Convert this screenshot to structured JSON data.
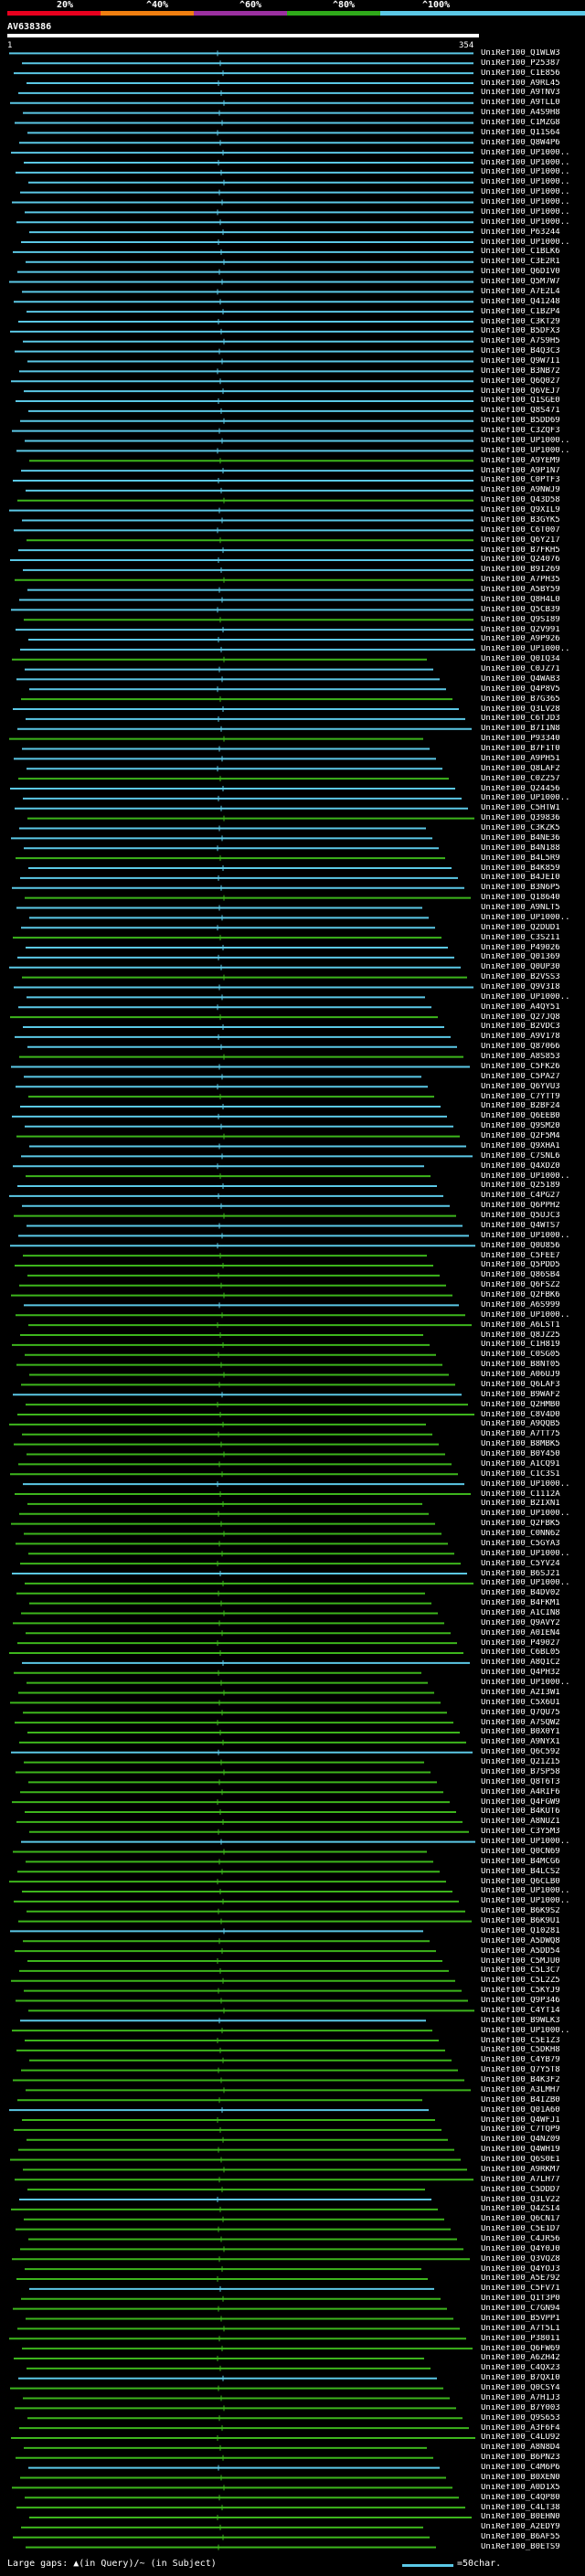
{
  "header": {
    "percent_labels": [
      "20%",
      "^40%",
      "^60%",
      "^80%",
      "^100%"
    ],
    "band_colors": [
      "#e8001e",
      "#f07f10",
      "#9b30a0",
      "#2faa1a",
      "#5bc8e6"
    ]
  },
  "query": {
    "name": "AV638386",
    "start_label": "1",
    "end_label": "354"
  },
  "colors": {
    "blue": "#5bc8e6",
    "green": "#3db51c",
    "magenta": "#c430a0",
    "line_dark": "#1a1a1a"
  },
  "hits": [
    "UniRef100_Q1WLW3",
    "UniRef100_P25387",
    "UniRef100_C1E856",
    "UniRef100_A9RL45",
    "UniRef100_A9TNV3",
    "UniRef100_A9TLL0",
    "UniRef100_A4S9H8",
    "UniRef100_C1MZG8",
    "UniRef100_Q11S64",
    "UniRef100_Q8W4P6",
    "UniRef100_UP1000..",
    "UniRef100_UP1000..",
    "UniRef100_UP1000..",
    "UniRef100_UP1000..",
    "UniRef100_UP1000..",
    "UniRef100_UP1000..",
    "UniRef100_UP1000..",
    "UniRef100_UP1000..",
    "UniRef100_P63244",
    "UniRef100_UP1000..",
    "UniRef100_C1BLK6",
    "UniRef100_C3E2R1",
    "UniRef100_Q6DIV0",
    "UniRef100_Q5M7W7",
    "UniRef100_A7E2L4",
    "UniRef100_Q41248",
    "UniRef100_C1BZP4",
    "UniRef100_C3KT29",
    "UniRef100_B5DFX3",
    "UniRef100_A7S9H5",
    "UniRef100_B4Q3C3",
    "UniRef100_Q9W7I1",
    "UniRef100_B3NB72",
    "UniRef100_Q6Q027",
    "UniRef100_Q6VEJ7",
    "UniRef100_Q1SGE0",
    "UniRef100_Q8S471",
    "UniRef100_B5DD69",
    "UniRef100_C3ZQF3",
    "UniRef100_UP1000..",
    "UniRef100_UP1000..",
    "UniRef100_A9YEM9",
    "UniRef100_A9P1N7",
    "UniRef100_C0PTF3",
    "UniRef100_A9NWJ9",
    "UniRef100_Q43D58",
    "UniRef100_Q9XIL9",
    "UniRef100_B3GYK5",
    "UniRef100_C6T007",
    "UniRef100_Q6Y217",
    "UniRef100_B7FKH5",
    "UniRef100_Q24076",
    "UniRef100_B9I269",
    "UniRef100_A7PH35",
    "UniRef100_A5BY59",
    "UniRef100_Q8H4L0",
    "UniRef100_Q5CB39",
    "UniRef100_Q9SI89",
    "UniRef100_Q2V991",
    "UniRef100_A9P926",
    "UniRef100_UP1000..",
    "UniRef100_Q0IQ34",
    "UniRef100_C0JZ71",
    "UniRef100_Q4WAB3",
    "UniRef100_Q4P8V5",
    "UniRef100_B7G365",
    "UniRef100_Q3LV28",
    "UniRef100_C6TJD3",
    "UniRef100_B7I1N8",
    "UniRef100_P93340",
    "UniRef100_B7F1T0",
    "UniRef100_A9PH51",
    "UniRef100_Q8LAF2",
    "UniRef100_C0Z257",
    "UniRef100_Q24456",
    "UniRef100_UP1000..",
    "UniRef100_C5HTW1",
    "UniRef100_Q39836",
    "UniRef100_C3KZK5",
    "UniRef100_B4NE36",
    "UniRef100_B4N188",
    "UniRef100_B4L5R9",
    "UniRef100_B4K859",
    "UniRef100_B4JEI0",
    "UniRef100_B3N6P5",
    "UniRef100_Q18640",
    "UniRef100_A9NLT5",
    "UniRef100_UP1000..",
    "UniRef100_Q2DUD1",
    "UniRef100_C3S211",
    "UniRef100_P49026",
    "UniRef100_Q01369",
    "UniRef100_Q0UP30",
    "UniRef100_B2VSS3",
    "UniRef100_Q9V3I8",
    "UniRef100_UP1000..",
    "UniRef100_A4QY51",
    "UniRef100_Q27JQ8",
    "UniRef100_B2VDC3",
    "UniRef100_A9V178",
    "UniRef100_Q87066",
    "UniRef100_A8S853",
    "UniRef100_C5FK26",
    "UniRef100_C5PA27",
    "UniRef100_Q6YVU3",
    "UniRef100_C7YTT9",
    "UniRef100_B2BF24",
    "UniRef100_Q6EEB0",
    "UniRef100_Q9SM20",
    "UniRef100_Q2F5M4",
    "UniRef100_Q9XHA1",
    "UniRef100_C7SNL6",
    "UniRef100_Q4XDZ0",
    "UniRef100_UP1000..",
    "UniRef100_Q25189",
    "UniRef100_C4PG27",
    "UniRef100_Q6PPH2",
    "UniRef100_Q5UJC3",
    "UniRef100_Q4WTS7",
    "UniRef100_UP1000..",
    "UniRef100_Q0U856",
    "UniRef100_C5FEE7",
    "UniRef100_Q5PDD5",
    "UniRef100_Q86SB4",
    "UniRef100_Q6FSZ2",
    "UniRef100_Q2FBK6",
    "UniRef100_A6S999",
    "UniRef100_UP1000..",
    "UniRef100_A6LST1",
    "UniRef100_Q8JZ25",
    "UniRef100_C1H819",
    "UniRef100_C0SG05",
    "UniRef100_B8NT05",
    "UniRef100_A06UJ9",
    "UniRef100_Q6LAF3",
    "UniRef100_B9WAF2",
    "UniRef100_Q2HMB0",
    "UniRef100_C8V4D0",
    "UniRef100_A9QQB5",
    "UniRef100_A7TT75",
    "UniRef100_B8MBK5",
    "UniRef100_B0Y450",
    "UniRef100_A1CQ91",
    "UniRef100_C1C3S1",
    "UniRef100_UP1000..",
    "UniRef100_C1112A",
    "UniRef100_B2IXN1",
    "UniRef100_UP1000..",
    "UniRef100_Q2FBK5",
    "UniRef100_C0NN62",
    "UniRef100_C5GYA3",
    "UniRef100_UP1000..",
    "UniRef100_C5YV24",
    "UniRef100_B6SJ21",
    "UniRef100_UP1000..",
    "UniRef100_B4DV02",
    "UniRef100_B4FKM1",
    "UniRef100_A1CIN8",
    "UniRef100_Q9AVY2",
    "UniRef100_A0IEN4",
    "UniRef100_P49027",
    "UniRef100_C6BL05",
    "UniRef100_A8Q1C2",
    "UniRef100_Q4PH32",
    "UniRef100_UP1000..",
    "UniRef100_A2I3W1",
    "UniRef100_C5X6U1",
    "UniRef100_Q7QU75",
    "UniRef100_A7SQW2",
    "UniRef100_B0X0Y1",
    "UniRef100_A9NYX1",
    "UniRef100_Q6C592",
    "UniRef100_Q21Z15",
    "UniRef100_B7SP58",
    "UniRef100_Q8T6T3",
    "UniRef100_A4RIF6",
    "UniRef100_Q4FGW9",
    "UniRef100_B4KUT6",
    "UniRef100_A8NUZ1",
    "UniRef100_C3Y5M3",
    "UniRef100_UP1000..",
    "UniRef100_Q0CN69",
    "UniRef100_B4MCG6",
    "UniRef100_B4LCS2",
    "UniRef100_Q6CLB0",
    "UniRef100_UP1000..",
    "UniRef100_UP1000..",
    "UniRef100_B6K9S2",
    "UniRef100_B6K9U1",
    "UniRef100_Q10281",
    "UniRef100_A5DWQ8",
    "UniRef100_A5DD54",
    "UniRef100_C5MJU0",
    "UniRef100_C5L3C7",
    "UniRef100_C5L2Z5",
    "UniRef100_C5KYJ9",
    "UniRef100_Q9P346",
    "UniRef100_C4YT14",
    "UniRef100_B9WLK3",
    "UniRef100_UP1000..",
    "UniRef100_C5E1Z3",
    "UniRef100_C5DKH8",
    "UniRef100_C4YB79",
    "UniRef100_Q7Y5T8",
    "UniRef100_B4K3F2",
    "UniRef100_A3LMH7",
    "UniRef100_B4IZB0",
    "UniRef100_Q01A60",
    "UniRef100_Q4WFJ1",
    "UniRef100_C7TQP9",
    "UniRef100_Q4NZ09",
    "UniRef100_Q4WH19",
    "UniRef100_Q6S0E1",
    "UniRef100_A9RKM7",
    "UniRef100_A7LH77",
    "UniRef100_C5DDD7",
    "UniRef100_Q3LV22",
    "UniRef100_Q4ZSI4",
    "UniRef100_Q6CN17",
    "UniRef100_C5E1D7",
    "UniRef100_C4JR56",
    "UniRef100_Q4Y0J0",
    "UniRef100_Q3VQZ8",
    "UniRef100_Q4YOJ3",
    "UniRef100_A5E792",
    "UniRef100_C5FV71",
    "UniRef100_Q1T3P0",
    "UniRef100_C7GN94",
    "UniRef100_B5VPP1",
    "UniRef100_A7T5L1",
    "UniRef100_P38011",
    "UniRef100_Q6FW69",
    "UniRef100_A6ZH42",
    "UniRef100_C4QX23",
    "UniRef100_B7QXI0",
    "UniRef100_Q0CSY4",
    "UniRef100_A7H1J3",
    "UniRef100_B7Y003",
    "UniRef100_Q9S653",
    "UniRef100_A3F6F4",
    "UniRef100_C4LU92",
    "UniRef100_A8N8D4",
    "UniRef100_B6PN23",
    "UniRef100_C4M6P6",
    "UniRef100_B0XEN0",
    "UniRef100_A0D1X5",
    "UniRef100_C4QP80",
    "UniRef100_C4LT38",
    "UniRef100_B0EHN0",
    "UniRef100_A2EDY9",
    "UniRef100_B6AF55",
    "UniRef100_B0ETS9"
  ],
  "legend": {
    "left_text": "Large gaps: ▲(in Query)/~ (in Subject)",
    "right_text": "=50char."
  }
}
